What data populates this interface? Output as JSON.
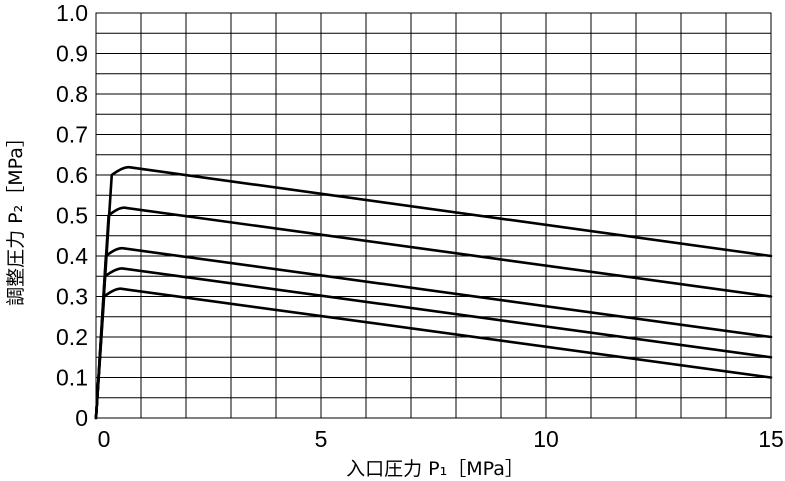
{
  "chart_data": {
    "type": "line",
    "xlabel": "入口圧力 P₁［MPa］",
    "ylabel": "調整圧力 P₂［MPa］",
    "xlim": [
      0,
      15
    ],
    "ylim": [
      0,
      1.0
    ],
    "x_ticks": [
      "0",
      "5",
      "10",
      "15"
    ],
    "y_ticks": [
      "0",
      "0.1",
      "0.2",
      "0.3",
      "0.4",
      "0.5",
      "0.6",
      "0.7",
      "0.8",
      "0.9",
      "1.0"
    ],
    "grid": true,
    "series": [
      {
        "x": [
          0,
          0.35,
          0.6,
          15
        ],
        "y": [
          0,
          0.6,
          0.62,
          0.4
        ]
      },
      {
        "x": [
          0,
          0.28,
          0.5,
          15
        ],
        "y": [
          0,
          0.5,
          0.52,
          0.3
        ]
      },
      {
        "x": [
          0,
          0.22,
          0.45,
          15
        ],
        "y": [
          0,
          0.4,
          0.42,
          0.2
        ]
      },
      {
        "x": [
          0,
          0.2,
          0.45,
          15
        ],
        "y": [
          0,
          0.35,
          0.37,
          0.15
        ]
      },
      {
        "x": [
          0,
          0.18,
          0.42,
          15
        ],
        "y": [
          0,
          0.3,
          0.32,
          0.1
        ]
      }
    ]
  }
}
